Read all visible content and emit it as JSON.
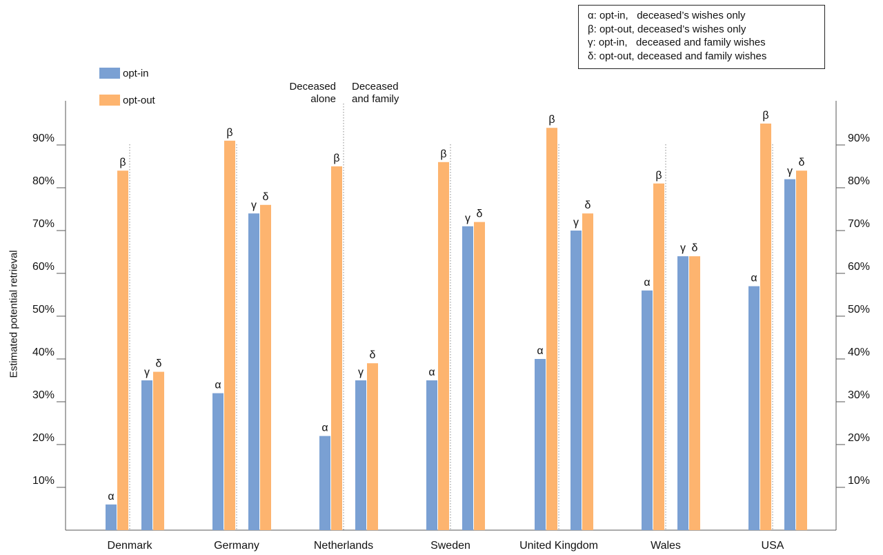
{
  "chart_data": {
    "type": "bar",
    "title": "",
    "ylabel": "Estimated potential retrieval",
    "xlabel": "",
    "ylim": [
      0,
      100
    ],
    "yticks": [
      "10%",
      "20%",
      "30%",
      "40%",
      "50%",
      "60%",
      "70%",
      "80%",
      "90%"
    ],
    "categories": [
      "Denmark",
      "Germany",
      "Netherlands",
      "Sweden",
      "United Kingdom",
      "Wales",
      "USA"
    ],
    "groups": [
      {
        "name": "Deceased alone",
        "bars": [
          {
            "series": "opt-in",
            "symbol": "α"
          },
          {
            "series": "opt-out",
            "symbol": "β"
          }
        ]
      },
      {
        "name": "Deceased and family",
        "bars": [
          {
            "series": "opt-in",
            "symbol": "γ"
          },
          {
            "series": "opt-out",
            "symbol": "δ"
          }
        ]
      }
    ],
    "series": [
      {
        "name": "α",
        "values": [
          6,
          32,
          22,
          35,
          40,
          56,
          57
        ]
      },
      {
        "name": "β",
        "values": [
          84,
          91,
          85,
          86,
          94,
          81,
          95
        ]
      },
      {
        "name": "γ",
        "values": [
          35,
          74,
          35,
          71,
          70,
          64,
          82
        ]
      },
      {
        "name": "δ",
        "values": [
          37,
          76,
          39,
          72,
          74,
          64,
          84
        ]
      }
    ],
    "grid": false,
    "legend_position": "top-right"
  },
  "legend": {
    "series": [
      {
        "label": "opt-in",
        "color": "#7aa0d3"
      },
      {
        "label": "opt-out",
        "color": "#fdb46f"
      }
    ],
    "symbols": [
      "α: opt-in,   deceased’s wishes only",
      "β: opt-out, deceased’s wishes only",
      "γ: opt-in,   deceased and family wishes",
      "δ: opt-out, deceased and family wishes"
    ]
  },
  "section_labels": {
    "left": [
      "Deceased",
      "alone"
    ],
    "right": [
      "Deceased",
      "and family"
    ]
  },
  "colors": {
    "opt_in": "#7aa0d3",
    "opt_out": "#fdb46f",
    "axis": "#555555",
    "separator": "#888888"
  }
}
